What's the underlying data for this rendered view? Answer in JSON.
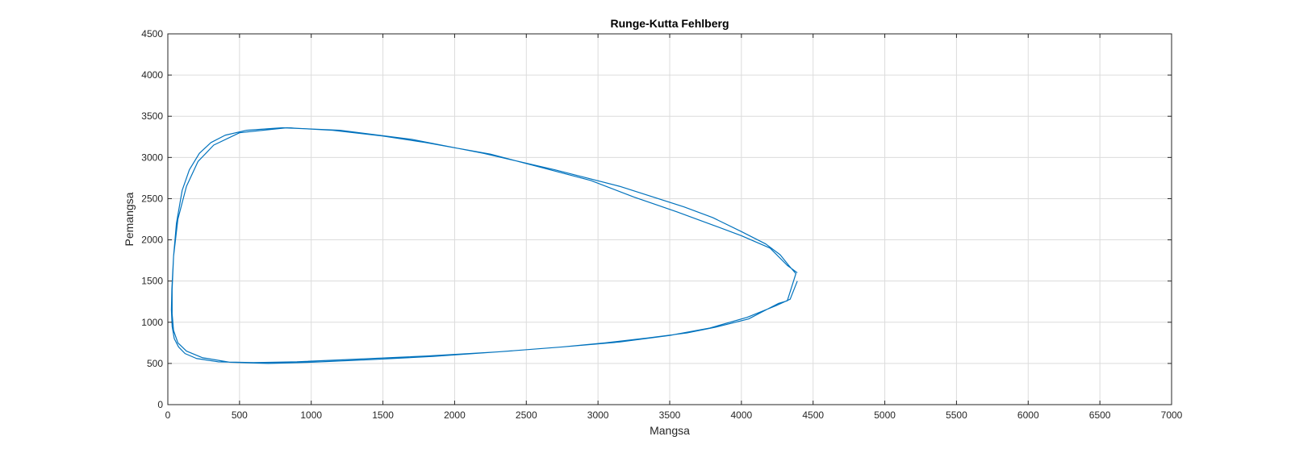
{
  "chart_data": {
    "type": "line",
    "title": "Runge-Kutta Fehlberg",
    "xlabel": "Mangsa",
    "ylabel": "Pemangsa",
    "xlim": [
      0,
      7000
    ],
    "ylim": [
      0,
      4500
    ],
    "xticks": [
      "0",
      "500",
      "1000",
      "1500",
      "2000",
      "2500",
      "3000",
      "3500",
      "4000",
      "4500",
      "5000",
      "5500",
      "6000",
      "6500",
      "7000"
    ],
    "yticks": [
      "0",
      "500",
      "1000",
      "1500",
      "2000",
      "2500",
      "3000",
      "3500",
      "4000",
      "4500"
    ],
    "grid": true,
    "line_color": "#0072bd",
    "series": [
      {
        "x": [
          4390,
          4340,
          4240,
          4040,
          3780,
          3500,
          3150,
          2750,
          2300,
          1800,
          1300,
          900,
          600,
          350,
          200,
          120,
          75,
          45,
          30,
          25,
          28,
          40,
          60,
          100,
          150,
          220,
          300,
          400,
          550,
          800,
          1200,
          1700,
          2200,
          2700,
          3150,
          3600,
          3800,
          4000,
          4170,
          4270,
          4330,
          4380,
          4320,
          4260,
          4050,
          3820,
          3620,
          3350,
          3050,
          2750,
          2300,
          1850,
          1400,
          1000,
          700,
          430,
          240,
          130,
          70,
          40,
          30,
          30,
          40,
          70,
          130,
          210,
          320,
          500,
          830,
          1150,
          1500,
          1800,
          2250,
          2600,
          2950,
          3250,
          3550,
          3800,
          4000,
          4200,
          4320,
          4390
        ],
        "y": [
          1500,
          1280,
          1200,
          1060,
          930,
          840,
          760,
          700,
          640,
          590,
          550,
          520,
          510,
          520,
          560,
          620,
          700,
          800,
          950,
          1150,
          1400,
          1800,
          2200,
          2600,
          2850,
          3050,
          3180,
          3270,
          3330,
          3360,
          3330,
          3220,
          3050,
          2850,
          2650,
          2400,
          2270,
          2100,
          1950,
          1820,
          1690,
          1590,
          1260,
          1230,
          1040,
          940,
          870,
          810,
          750,
          700,
          640,
          585,
          545,
          515,
          500,
          515,
          570,
          650,
          750,
          900,
          1100,
          1400,
          1800,
          2250,
          2650,
          2950,
          3150,
          3300,
          3360,
          3330,
          3260,
          3180,
          3040,
          2880,
          2720,
          2520,
          2340,
          2180,
          2050,
          1900,
          1690,
          1600
        ]
      }
    ]
  }
}
